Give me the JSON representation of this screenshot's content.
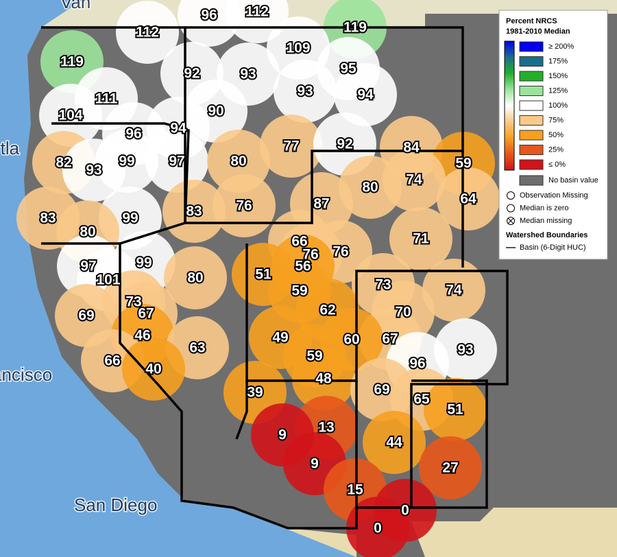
{
  "legend": {
    "title": [
      "Percent NRCS",
      "1981-2010 Median"
    ],
    "classes": [
      {
        "value": 200,
        "label": "≥ 200%",
        "color": "#0000ee"
      },
      {
        "value": 175,
        "label": "175%",
        "color": "#1a6e8c"
      },
      {
        "value": 150,
        "label": "150%",
        "color": "#22b02a"
      },
      {
        "value": 125,
        "label": "125%",
        "color": "#9be39b"
      },
      {
        "value": 100,
        "label": "100%",
        "color": "#ffffff"
      },
      {
        "value": 75,
        "label": "75%",
        "color": "#f9c98a"
      },
      {
        "value": 50,
        "label": "50%",
        "color": "#f6a020"
      },
      {
        "value": 25,
        "label": "25%",
        "color": "#e8561a"
      },
      {
        "value": 0,
        "label": "≤ 0%",
        "color": "#d0141a"
      }
    ],
    "no_value": {
      "label": "No basin value",
      "color": "#6e6e6e"
    },
    "symbols": [
      "Observation Missing",
      "Median is zero",
      "Median missing"
    ],
    "boundaries_title": "Watershed Boundaries",
    "boundary": "Basin (6-Digit HUC)"
  },
  "places": [
    "Van",
    "rtla",
    "ancisco",
    "San Diego"
  ],
  "basin_values": [
    96,
    112,
    119,
    112,
    109,
    119,
    95,
    92,
    93,
    93,
    94,
    111,
    90,
    104,
    96,
    94,
    77,
    92,
    84,
    82,
    93,
    99,
    97,
    80,
    59,
    80,
    74,
    76,
    87,
    64,
    83,
    83,
    99,
    80,
    71,
    66,
    76,
    76,
    56,
    97,
    99,
    51,
    80,
    101,
    73,
    74,
    59,
    73,
    67,
    62,
    70,
    69,
    46,
    49,
    67,
    60,
    63,
    93,
    59,
    66,
    96,
    40,
    48,
    69,
    39,
    65,
    51,
    13,
    9,
    44,
    9,
    27,
    15,
    0,
    0
  ]
}
